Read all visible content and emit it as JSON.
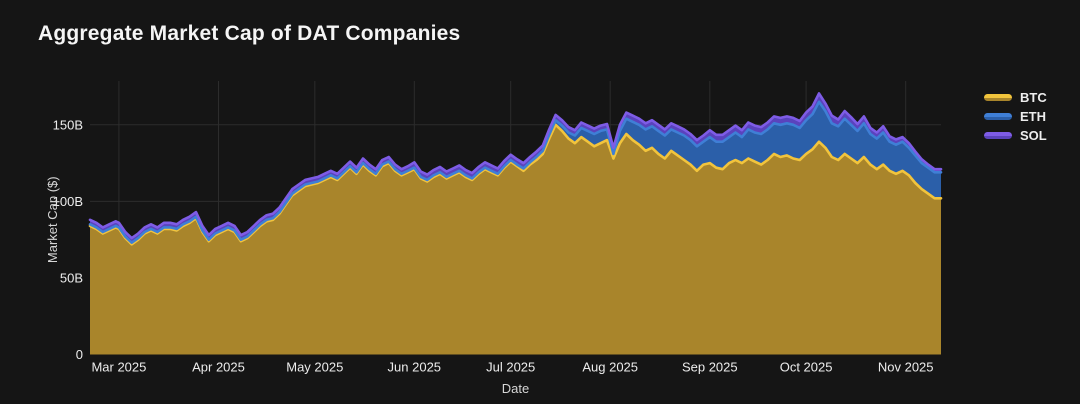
{
  "title": "Aggregate Market Cap of DAT Companies",
  "colors": {
    "background": "#151515",
    "grid": "#2c2c2c",
    "tick_text": "#ececec",
    "axis_title_text": "#d6d6d6",
    "title_text": "#f5f5f5"
  },
  "chart_data": {
    "type": "area",
    "stacked": true,
    "title": "Aggregate Market Cap of DAT Companies",
    "xlabel": "Date",
    "ylabel": "Market Cap ($)",
    "value_unit": "billions USD",
    "ylim": [
      0,
      176
    ],
    "grid": true,
    "legend_position": "top-right",
    "x_is_days_from_left_edge": true,
    "x": [
      0,
      2,
      4,
      6,
      8,
      9,
      11,
      13,
      15,
      17,
      19,
      21,
      23,
      25,
      27,
      29,
      31,
      33,
      35,
      37,
      39,
      41,
      43,
      45,
      47,
      49,
      51,
      53,
      55,
      57,
      59,
      61,
      63,
      65,
      67,
      69,
      71,
      73,
      75,
      77,
      79,
      81,
      83,
      85,
      87,
      89,
      91,
      93,
      95,
      97,
      99,
      101,
      103,
      105,
      107,
      109,
      111,
      113,
      115,
      117,
      119,
      121,
      123,
      125,
      127,
      129,
      131,
      133,
      135,
      137,
      139,
      141,
      143,
      145,
      147,
      149,
      151,
      153,
      155,
      157,
      159,
      161,
      163,
      165,
      167,
      169,
      171,
      173,
      175,
      177,
      179,
      181,
      183,
      185,
      187,
      189,
      191,
      193,
      195,
      197,
      199,
      201,
      203,
      205,
      207,
      209,
      211,
      213,
      215,
      217,
      219,
      221,
      223,
      225,
      227,
      229,
      231,
      233,
      235,
      237,
      239,
      241,
      243,
      245,
      247,
      249,
      251,
      253,
      255,
      257,
      259,
      261,
      263,
      265
    ],
    "x_ticks": [
      {
        "d": 9,
        "label": "Mar 2025"
      },
      {
        "d": 40,
        "label": "Apr 2025"
      },
      {
        "d": 70,
        "label": "May 2025"
      },
      {
        "d": 101,
        "label": "Jun 2025"
      },
      {
        "d": 131,
        "label": "Jul 2025"
      },
      {
        "d": 162,
        "label": "Aug 2025"
      },
      {
        "d": 193,
        "label": "Sep 2025"
      },
      {
        "d": 223,
        "label": "Oct 2025"
      },
      {
        "d": 254,
        "label": "Nov 2025"
      }
    ],
    "y_ticks": [
      {
        "v": 0,
        "label": "0"
      },
      {
        "v": 50,
        "label": "50B"
      },
      {
        "v": 100,
        "label": "100B"
      },
      {
        "v": 150,
        "label": "150B"
      }
    ],
    "series": [
      {
        "name": "BTC",
        "line": "#f2c43c",
        "fill": "#a9852b",
        "values": [
          84,
          82,
          79,
          81,
          83,
          82,
          76,
          72,
          75,
          79,
          81,
          79,
          82,
          82,
          81,
          84,
          86,
          89,
          80,
          74,
          78,
          80,
          82,
          80,
          74,
          76,
          80,
          84,
          87,
          88,
          92,
          98,
          104,
          107,
          110,
          111,
          112,
          114,
          116,
          114,
          118,
          122,
          118,
          124,
          120,
          117,
          123,
          125,
          120,
          117,
          119,
          121,
          115,
          113,
          116,
          118,
          115,
          117,
          119,
          116,
          114,
          118,
          121,
          119,
          117,
          122,
          126,
          123,
          120,
          124,
          127,
          131,
          141,
          150,
          146,
          141,
          138,
          142,
          139,
          136,
          138,
          140,
          128,
          138,
          144,
          140,
          137,
          133,
          135,
          131,
          128,
          133,
          130,
          127,
          124,
          120,
          124,
          125,
          122,
          121,
          125,
          127,
          125,
          128,
          126,
          124,
          127,
          131,
          129,
          130,
          128,
          127,
          131,
          134,
          139,
          135,
          129,
          127,
          131,
          128,
          125,
          129,
          124,
          121,
          124,
          120,
          118,
          120,
          117,
          112,
          108,
          105,
          102,
          102
        ]
      },
      {
        "name": "ETH",
        "line": "#3f7fd6",
        "fill": "#2b5fa9",
        "values": [
          1,
          1,
          1,
          1,
          1,
          1,
          1,
          1,
          1,
          1,
          1,
          1,
          1,
          1,
          1,
          1,
          1,
          1,
          1,
          1,
          1,
          1,
          1,
          1,
          1,
          1,
          1,
          1,
          1,
          1,
          1,
          1,
          1,
          1,
          1,
          1,
          1,
          1,
          1,
          1,
          1,
          1,
          1,
          1,
          1,
          1,
          1,
          1,
          1,
          1,
          1,
          1,
          1,
          1,
          1,
          1,
          1,
          1,
          1,
          1,
          1,
          1,
          1,
          1,
          1,
          1,
          1,
          1,
          1.5,
          1.5,
          2,
          2,
          2.5,
          3,
          3.5,
          4,
          5,
          6,
          7,
          8,
          8,
          7,
          3,
          8,
          10,
          12,
          13,
          14,
          14,
          15,
          15,
          14,
          15,
          16,
          16,
          16,
          15,
          17,
          17,
          18,
          17,
          18,
          17,
          19,
          19,
          20,
          20,
          20,
          21,
          21,
          22,
          21,
          22,
          23,
          26,
          24,
          22,
          22,
          23,
          22,
          21,
          22,
          20,
          20,
          21,
          19,
          19,
          19,
          18,
          18,
          17,
          17,
          17,
          17
        ]
      },
      {
        "name": "SOL",
        "line": "#7e5ce6",
        "fill": "#5a43bd",
        "values": [
          3,
          3,
          3,
          3,
          3,
          3,
          3,
          3,
          3,
          3,
          3,
          3,
          3,
          3,
          3,
          3,
          3,
          3,
          3,
          3,
          3,
          3,
          3,
          3,
          3,
          3,
          3,
          3,
          3,
          3,
          3,
          3,
          3,
          3,
          3,
          3,
          3,
          3,
          3,
          3,
          3,
          3,
          3,
          3,
          3,
          3,
          3,
          3,
          3,
          3,
          3,
          3.5,
          3.5,
          3.5,
          3.5,
          3.5,
          3.5,
          3.5,
          3.5,
          3.5,
          3.5,
          3.5,
          3.5,
          3.5,
          3.5,
          3.5,
          3.5,
          3.5,
          3.5,
          3.5,
          3.5,
          3.5,
          3.5,
          3.5,
          3.5,
          3.5,
          3.5,
          3.5,
          3.5,
          3.5,
          3.5,
          3.5,
          4,
          4,
          4,
          4,
          4,
          4,
          4,
          4,
          4,
          4,
          4,
          4,
          4,
          4,
          4,
          4.5,
          4.5,
          4.5,
          4.5,
          4.5,
          4.5,
          4.5,
          4.5,
          4.5,
          4.5,
          4.5,
          4.5,
          4.5,
          4.5,
          4.5,
          5,
          5,
          5.5,
          5,
          5,
          4.5,
          5,
          5,
          4.5,
          4.5,
          4,
          4,
          4,
          3.5,
          3.5,
          3,
          3,
          2.5,
          2.5,
          2,
          2,
          2
        ]
      }
    ]
  }
}
